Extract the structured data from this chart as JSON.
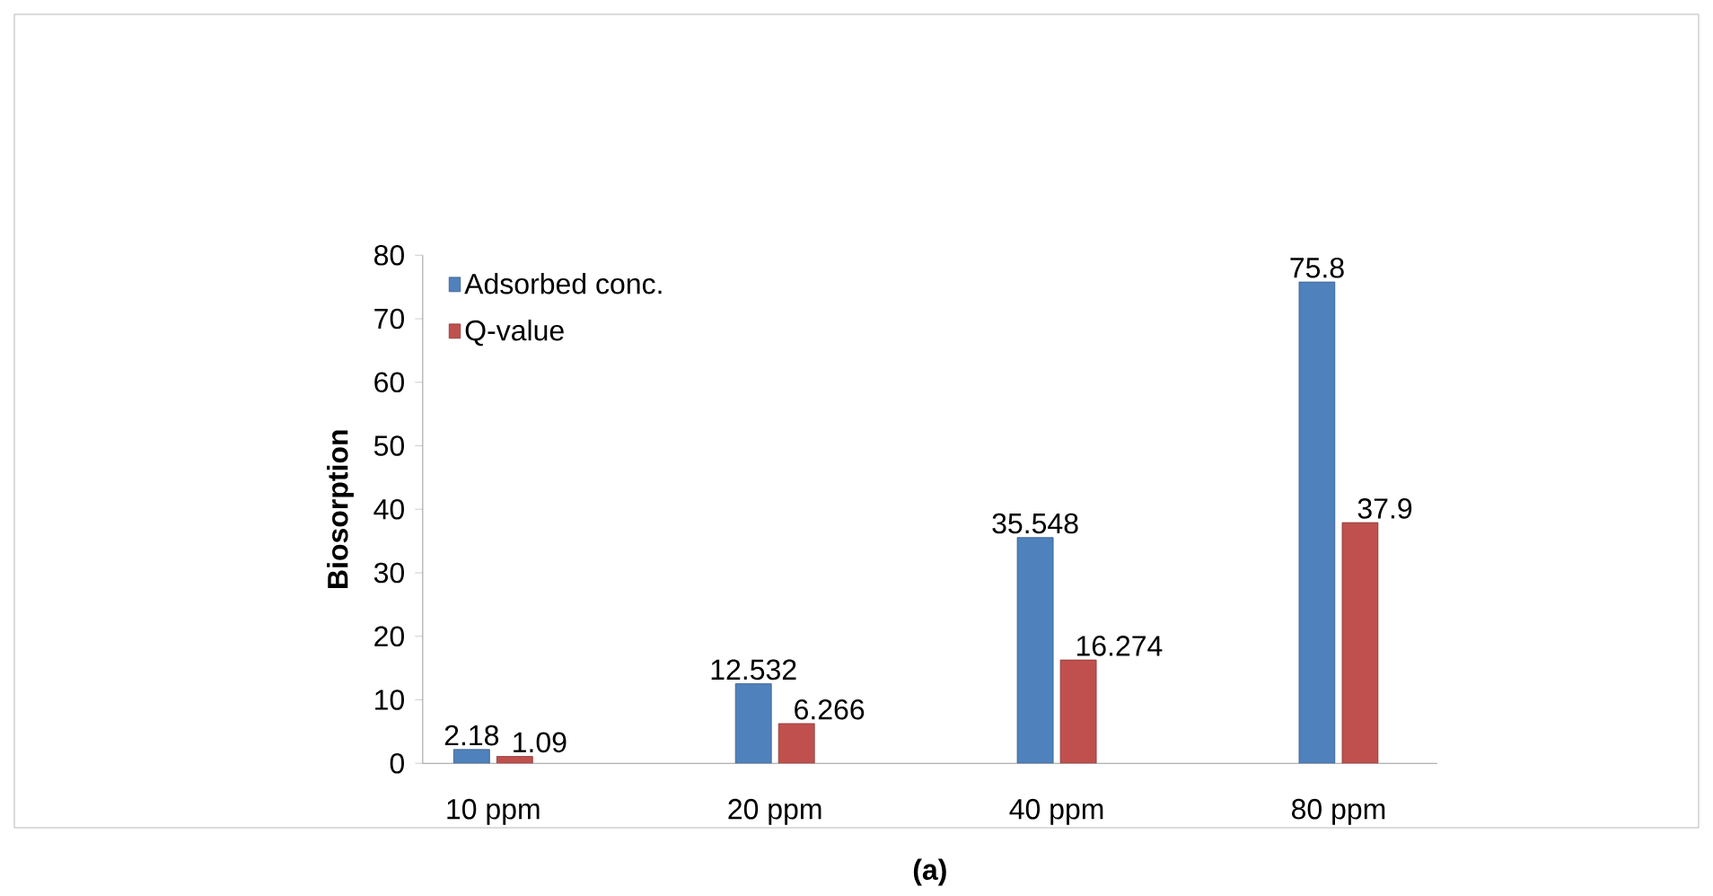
{
  "chart_data": {
    "type": "bar",
    "xlabel": "(a)",
    "ylabel": "Biosorption",
    "categories": [
      "10 ppm",
      "20 ppm",
      "40 ppm",
      "80 ppm"
    ],
    "series": [
      {
        "name": "Adsorbed conc.",
        "color": "#4f81bd",
        "values": [
          2.18,
          12.532,
          35.548,
          75.8
        ]
      },
      {
        "name": "Q-value",
        "color": "#c0504d",
        "values": [
          1.09,
          6.266,
          16.274,
          37.9
        ]
      }
    ],
    "ylim": [
      0,
      80
    ],
    "yticks": [
      0,
      10,
      20,
      30,
      40,
      50,
      60,
      70,
      80
    ],
    "data_labels": true,
    "legend": "top left",
    "grid": false
  }
}
